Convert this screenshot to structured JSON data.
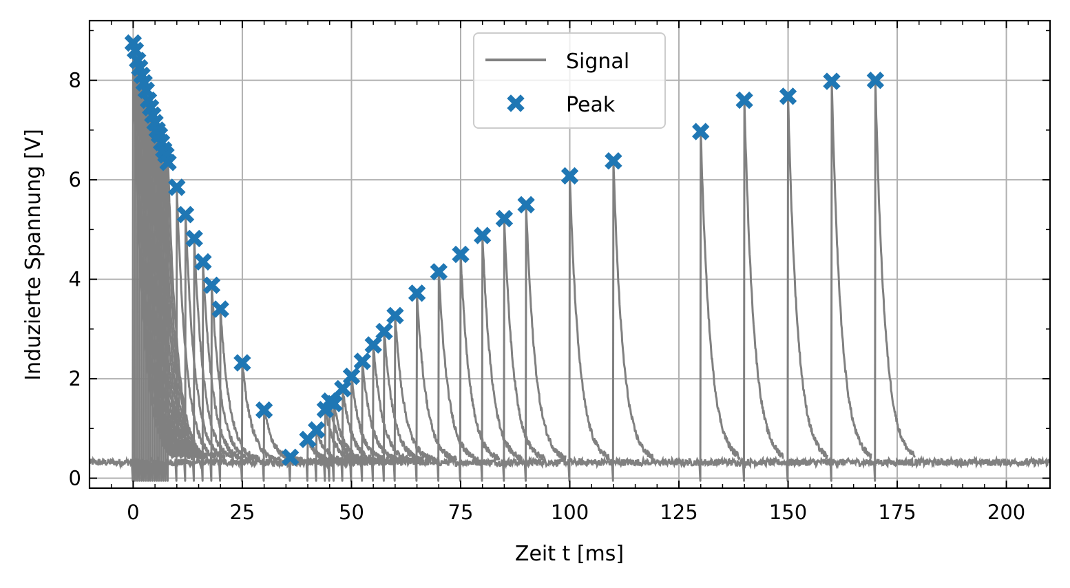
{
  "chart_data": {
    "type": "line",
    "xlabel": "Zeit t [ms]",
    "ylabel": "Induzierte Spannung [V]",
    "xlim": [
      -10,
      210
    ],
    "ylim": [
      -0.2,
      9.2
    ],
    "xticks": [
      0,
      25,
      50,
      75,
      100,
      125,
      150,
      175,
      200
    ],
    "yticks": [
      0,
      2,
      4,
      6,
      8
    ],
    "grid": true,
    "legend_position": "top-center",
    "baseline": 0.32,
    "colors": {
      "signal": "#808080",
      "peak": "#1f77b4"
    },
    "series": [
      {
        "name": "Signal",
        "kind": "line"
      },
      {
        "name": "Peak",
        "kind": "scatter",
        "marker": "X",
        "x": [
          0,
          0.5,
          1,
          1.5,
          2,
          2.5,
          3,
          3.5,
          4,
          4.5,
          5,
          5.5,
          6,
          6.5,
          7,
          7.5,
          8,
          10,
          12,
          14,
          16,
          18,
          20,
          25,
          30,
          36,
          40,
          42,
          44,
          45,
          46,
          48,
          50,
          52.5,
          55,
          57.5,
          60,
          65,
          70,
          75,
          80,
          85,
          90,
          100,
          110,
          130,
          140,
          150,
          160,
          170
        ],
        "y": [
          8.75,
          8.6,
          8.4,
          8.25,
          8.1,
          7.95,
          7.8,
          7.6,
          7.45,
          7.3,
          7.15,
          7.0,
          6.9,
          6.75,
          6.6,
          6.5,
          6.35,
          5.85,
          5.3,
          4.82,
          4.35,
          3.88,
          3.4,
          2.32,
          1.37,
          0.42,
          0.78,
          0.97,
          1.38,
          1.55,
          1.5,
          1.8,
          2.05,
          2.35,
          2.68,
          2.95,
          3.27,
          3.72,
          4.15,
          4.5,
          4.88,
          5.22,
          5.5,
          6.08,
          6.38,
          6.97,
          7.6,
          7.68,
          7.98,
          8.0
        ]
      }
    ],
    "legend": {
      "signal": "Signal",
      "peak": "Peak"
    }
  }
}
